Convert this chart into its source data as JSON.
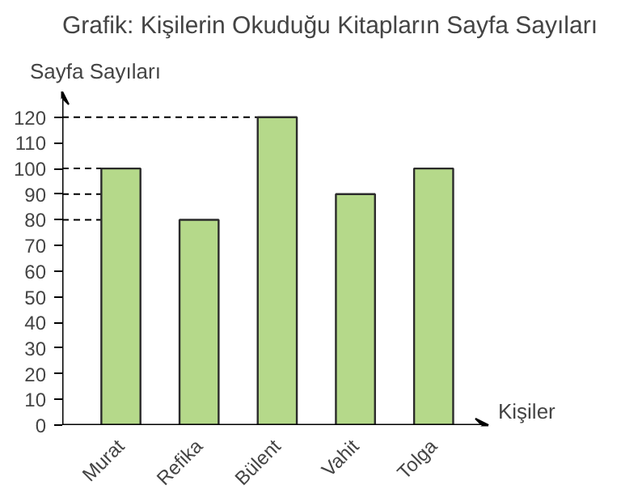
{
  "chart_data": {
    "type": "bar",
    "title": "Grafik: Kişilerin Okuduğu Kitapların Sayfa Sayıları",
    "xlabel": "Kişiler",
    "ylabel": "Sayfa Sayıları",
    "categories": [
      "Murat",
      "Refika",
      "Bülent",
      "Vahit",
      "Tolga"
    ],
    "values": [
      100,
      80,
      120,
      90,
      100
    ],
    "color": "#b5d98a",
    "ylim": [
      0,
      130
    ],
    "yticks": [
      0,
      10,
      20,
      30,
      40,
      50,
      60,
      70,
      80,
      90,
      100,
      110,
      120
    ],
    "grid": false,
    "ref_lines": [
      {
        "axis": "y",
        "value": 100,
        "line_style": "dashed"
      },
      {
        "axis": "y",
        "value": 80,
        "line_style": "dashed"
      },
      {
        "axis": "y",
        "value": 120,
        "line_style": "dashed"
      },
      {
        "axis": "y",
        "value": 90,
        "line_style": "dashed"
      }
    ]
  }
}
